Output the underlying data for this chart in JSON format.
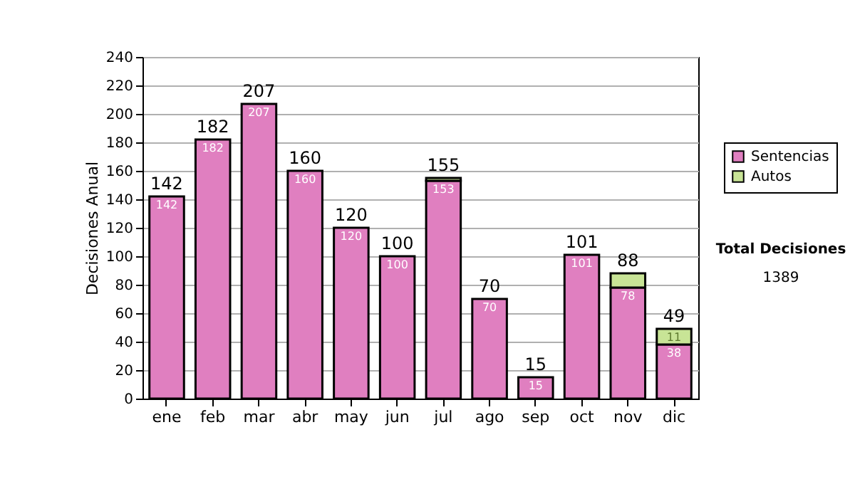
{
  "chart_data": {
    "type": "bar",
    "stacked": true,
    "ylabel": "Decisiones Anual",
    "categories": [
      "ene",
      "feb",
      "mar",
      "abr",
      "may",
      "jun",
      "jul",
      "ago",
      "sep",
      "oct",
      "nov",
      "dic"
    ],
    "series": [
      {
        "name": "Sentencias",
        "color": "#e07fc0",
        "values": [
          142,
          182,
          207,
          160,
          120,
          100,
          153,
          70,
          15,
          101,
          78,
          38
        ],
        "value_labels": [
          "142",
          "182",
          "207",
          "160",
          "120",
          "100",
          "153",
          "70",
          "15",
          "101",
          "78",
          "38"
        ]
      },
      {
        "name": "Autos",
        "color": "#c8e496",
        "values": [
          0,
          0,
          0,
          0,
          0,
          0,
          2,
          0,
          0,
          0,
          10,
          11
        ],
        "value_labels": [
          null,
          null,
          null,
          null,
          null,
          null,
          null,
          null,
          null,
          null,
          null,
          "11"
        ]
      }
    ],
    "totals": [
      "142",
      "182",
      "207",
      "160",
      "120",
      "100",
      "155",
      "70",
      "15",
      "101",
      "88",
      "49"
    ],
    "ylim": [
      0,
      240
    ],
    "yticks": [
      0,
      20,
      40,
      60,
      80,
      100,
      120,
      140,
      160,
      180,
      200,
      220,
      240
    ],
    "grid": "y",
    "legend": "right",
    "annotations": [
      "Total Decisiones",
      "1389"
    ]
  }
}
